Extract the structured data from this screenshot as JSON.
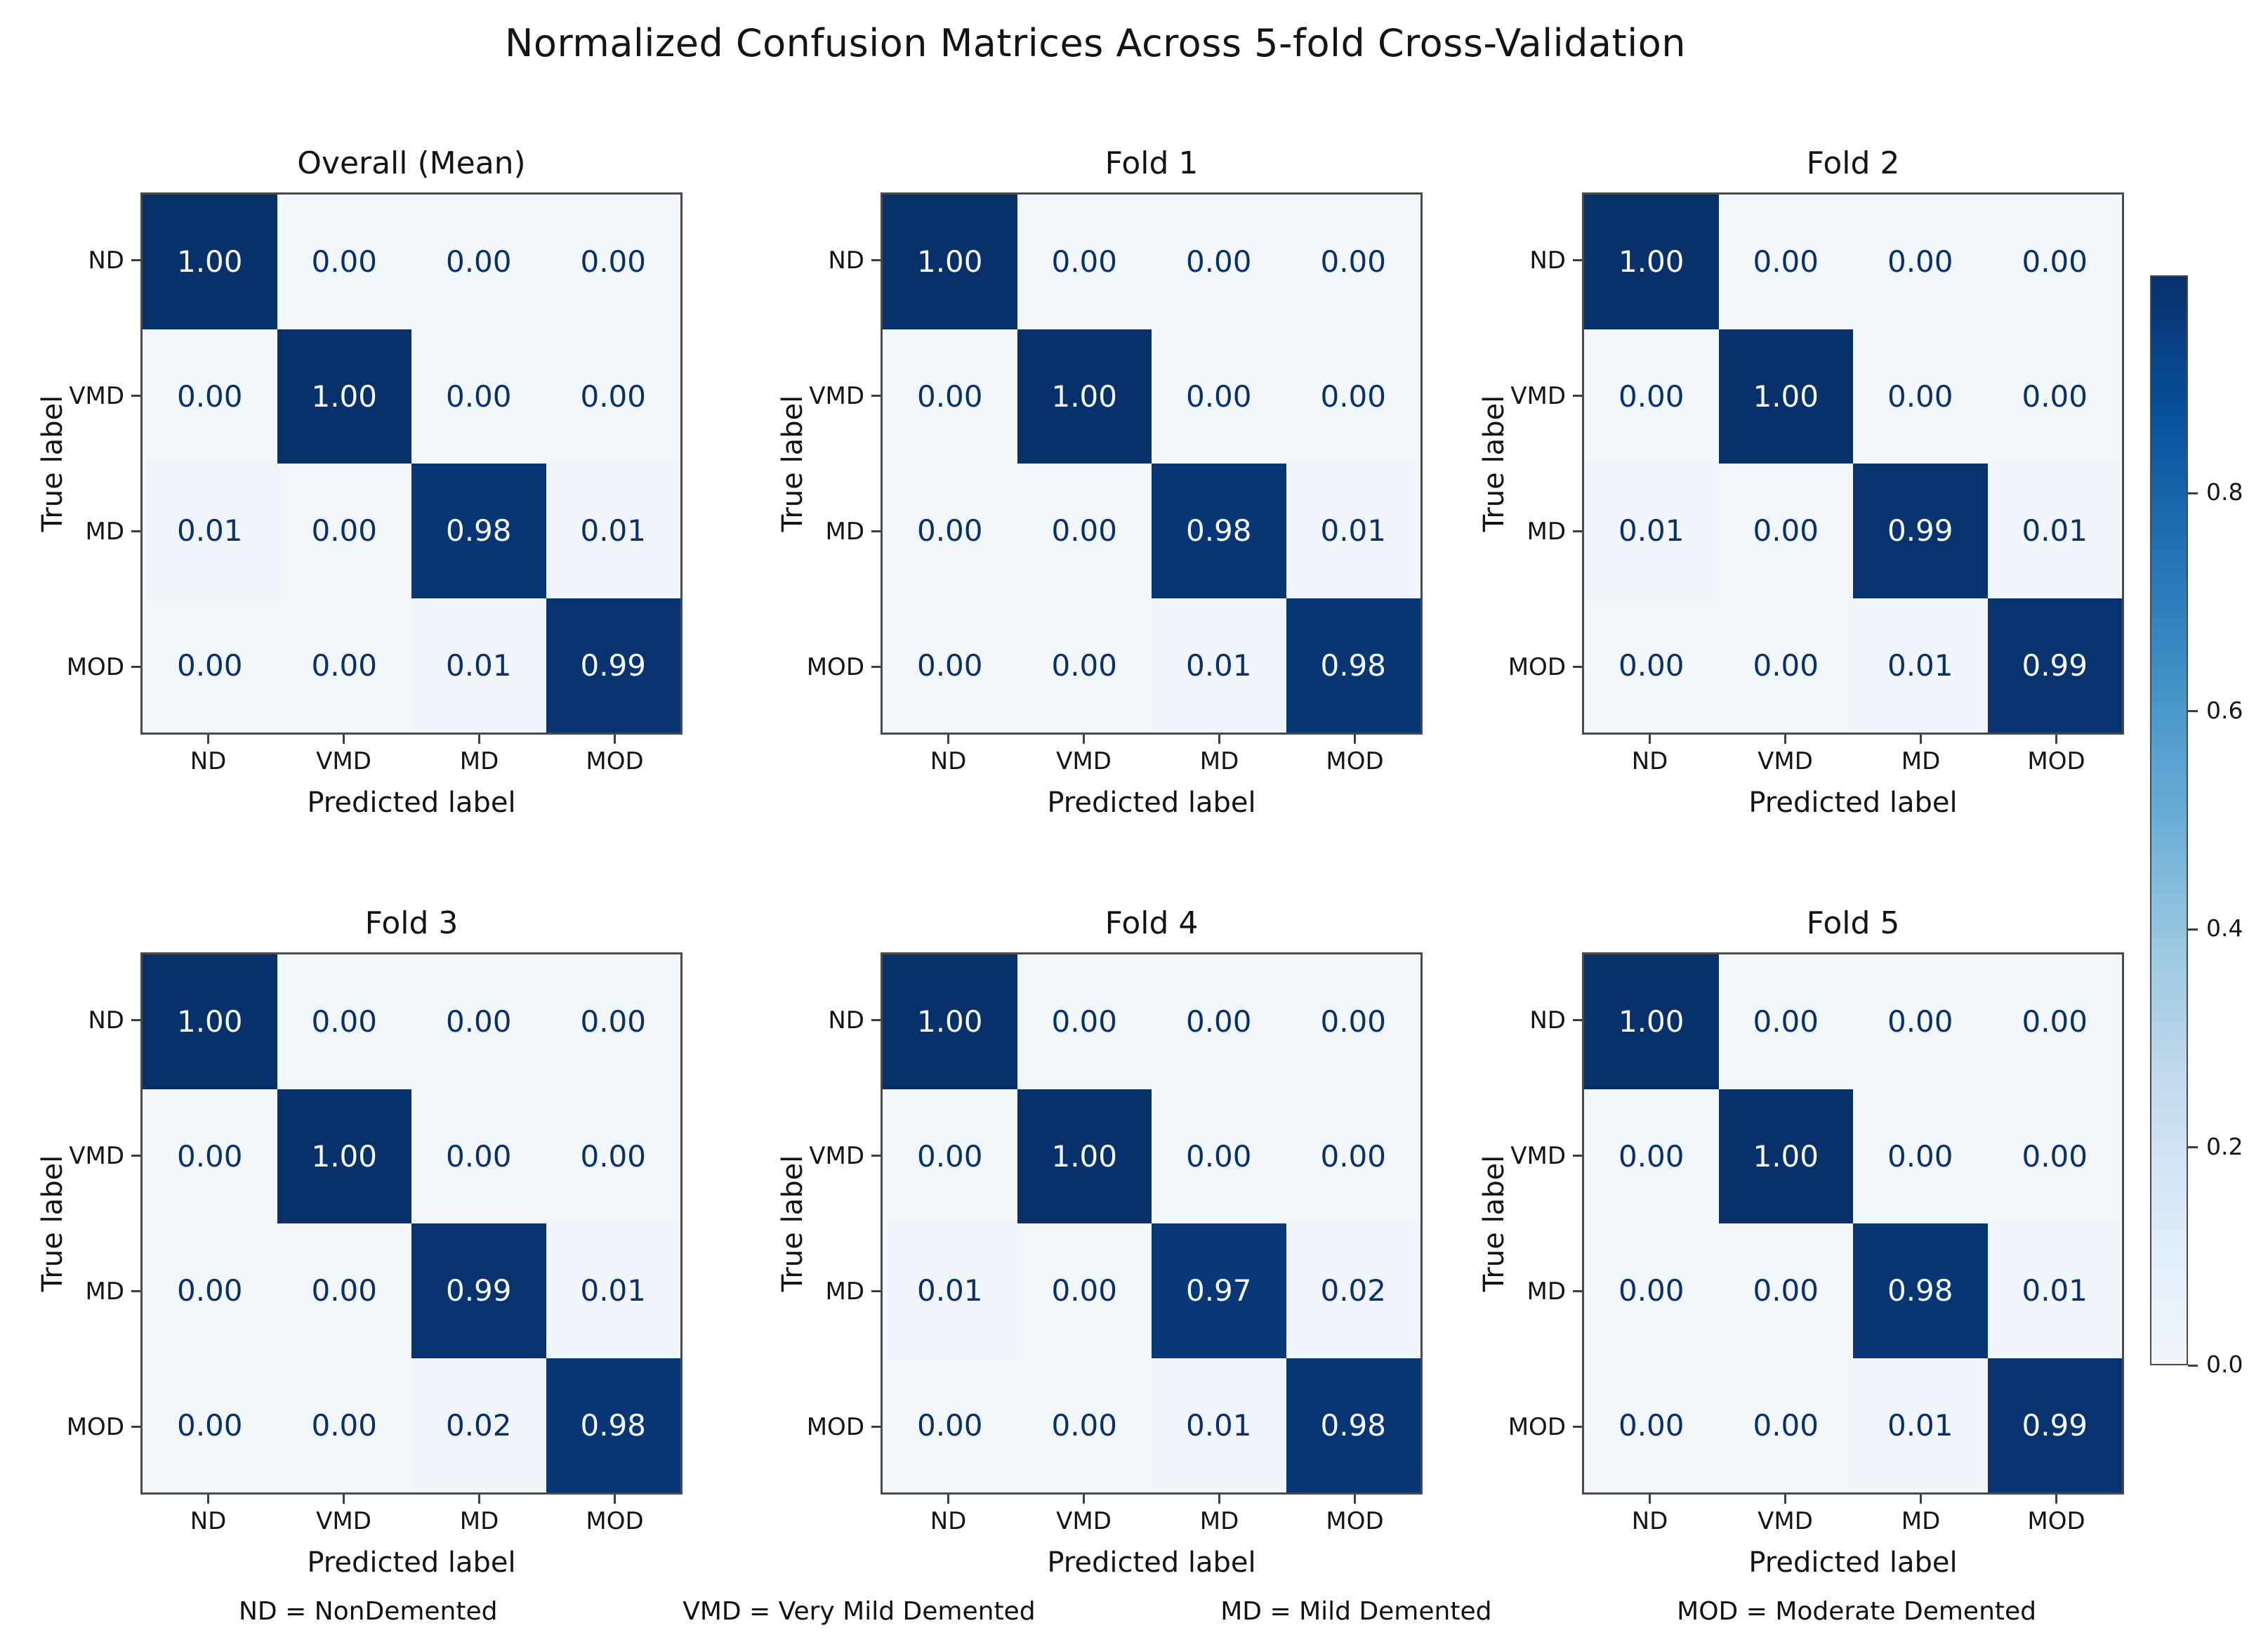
{
  "suptitle": "Normalized Confusion Matrices Across 5-fold Cross-Validation",
  "legend": [
    "ND = NonDemented",
    "VMD = Very Mild Demented",
    "MD = Mild Demented",
    "MOD = Moderate Demented"
  ],
  "colors": {
    "cmap_name": "Blues",
    "blues_anchors": [
      "#f2f7fb",
      "#deebf7",
      "#c6dbef",
      "#9ecae1",
      "#6baed6",
      "#4292c6",
      "#2171b5",
      "#08519c",
      "#08306b"
    ],
    "cell_text_dark": "#08306b",
    "cell_text_light": "#f7fbff",
    "axis_border": "#4a4a4a"
  },
  "colorbar": {
    "position": "right",
    "range": [
      0.0,
      1.0
    ],
    "ticks": [
      0.0,
      0.2,
      0.4,
      0.6,
      0.8
    ]
  },
  "chart_data": [
    {
      "type": "heatmap",
      "title": "Overall (Mean)",
      "xlabel": "Predicted label",
      "ylabel": "True label",
      "x_categories": [
        "ND",
        "VMD",
        "MD",
        "MOD"
      ],
      "y_categories": [
        "ND",
        "VMD",
        "MD",
        "MOD"
      ],
      "vmin": 0.0,
      "vmax": 1.0,
      "values": [
        [
          1.0,
          0.0,
          0.0,
          0.0
        ],
        [
          0.0,
          1.0,
          0.0,
          0.0
        ],
        [
          0.01,
          0.0,
          0.98,
          0.01
        ],
        [
          0.0,
          0.0,
          0.01,
          0.99
        ]
      ]
    },
    {
      "type": "heatmap",
      "title": "Fold 1",
      "xlabel": "Predicted label",
      "ylabel": "True label",
      "x_categories": [
        "ND",
        "VMD",
        "MD",
        "MOD"
      ],
      "y_categories": [
        "ND",
        "VMD",
        "MD",
        "MOD"
      ],
      "vmin": 0.0,
      "vmax": 1.0,
      "values": [
        [
          1.0,
          0.0,
          0.0,
          0.0
        ],
        [
          0.0,
          1.0,
          0.0,
          0.0
        ],
        [
          0.0,
          0.0,
          0.98,
          0.01
        ],
        [
          0.0,
          0.0,
          0.01,
          0.98
        ]
      ]
    },
    {
      "type": "heatmap",
      "title": "Fold 2",
      "xlabel": "Predicted label",
      "ylabel": "True label",
      "x_categories": [
        "ND",
        "VMD",
        "MD",
        "MOD"
      ],
      "y_categories": [
        "ND",
        "VMD",
        "MD",
        "MOD"
      ],
      "vmin": 0.0,
      "vmax": 1.0,
      "values": [
        [
          1.0,
          0.0,
          0.0,
          0.0
        ],
        [
          0.0,
          1.0,
          0.0,
          0.0
        ],
        [
          0.01,
          0.0,
          0.99,
          0.01
        ],
        [
          0.0,
          0.0,
          0.01,
          0.99
        ]
      ]
    },
    {
      "type": "heatmap",
      "title": "Fold 3",
      "xlabel": "Predicted label",
      "ylabel": "True label",
      "x_categories": [
        "ND",
        "VMD",
        "MD",
        "MOD"
      ],
      "y_categories": [
        "ND",
        "VMD",
        "MD",
        "MOD"
      ],
      "vmin": 0.0,
      "vmax": 1.0,
      "values": [
        [
          1.0,
          0.0,
          0.0,
          0.0
        ],
        [
          0.0,
          1.0,
          0.0,
          0.0
        ],
        [
          0.0,
          0.0,
          0.99,
          0.01
        ],
        [
          0.0,
          0.0,
          0.02,
          0.98
        ]
      ]
    },
    {
      "type": "heatmap",
      "title": "Fold 4",
      "xlabel": "Predicted label",
      "ylabel": "True label",
      "x_categories": [
        "ND",
        "VMD",
        "MD",
        "MOD"
      ],
      "y_categories": [
        "ND",
        "VMD",
        "MD",
        "MOD"
      ],
      "vmin": 0.0,
      "vmax": 1.0,
      "values": [
        [
          1.0,
          0.0,
          0.0,
          0.0
        ],
        [
          0.0,
          1.0,
          0.0,
          0.0
        ],
        [
          0.01,
          0.0,
          0.97,
          0.02
        ],
        [
          0.0,
          0.0,
          0.01,
          0.98
        ]
      ]
    },
    {
      "type": "heatmap",
      "title": "Fold 5",
      "xlabel": "Predicted label",
      "ylabel": "True label",
      "x_categories": [
        "ND",
        "VMD",
        "MD",
        "MOD"
      ],
      "y_categories": [
        "ND",
        "VMD",
        "MD",
        "MOD"
      ],
      "vmin": 0.0,
      "vmax": 1.0,
      "values": [
        [
          1.0,
          0.0,
          0.0,
          0.0
        ],
        [
          0.0,
          1.0,
          0.0,
          0.0
        ],
        [
          0.0,
          0.0,
          0.98,
          0.01
        ],
        [
          0.0,
          0.0,
          0.01,
          0.99
        ]
      ]
    }
  ]
}
